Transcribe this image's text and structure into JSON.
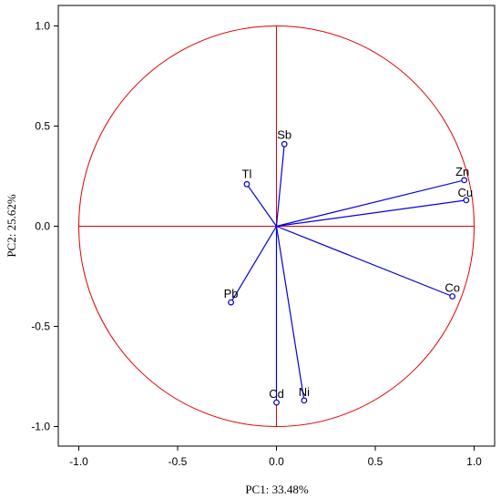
{
  "chart_data": {
    "type": "scatter",
    "subtype": "pca-loading-plot",
    "title": "",
    "xlabel": "PC1: 33.48%",
    "ylabel": "PC2: 25.62%",
    "xlim": [
      -1.1,
      1.1
    ],
    "ylim": [
      -1.1,
      1.1
    ],
    "xticks": [
      "-1.0",
      "-0.5",
      "0.0",
      "0.5",
      "1.0"
    ],
    "yticks": [
      "1.0",
      "0.5",
      "0.0",
      "-0.5",
      "-1.0"
    ],
    "grid": false,
    "unit_circle_radius": 1.0,
    "colors": {
      "circle": "#e00000",
      "vectors": "#0000e0",
      "points": "#0000c0"
    },
    "points": [
      {
        "label": "Sb",
        "x": 0.04,
        "y": 0.41
      },
      {
        "label": "Tl",
        "x": -0.15,
        "y": 0.21
      },
      {
        "label": "Zn",
        "x": 0.95,
        "y": 0.23
      },
      {
        "label": "Cu",
        "x": 0.96,
        "y": 0.13
      },
      {
        "label": "Co",
        "x": 0.89,
        "y": -0.35
      },
      {
        "label": "Pb",
        "x": -0.23,
        "y": -0.38
      },
      {
        "label": "Cd",
        "x": 0.0,
        "y": -0.88
      },
      {
        "label": "Ni",
        "x": 0.14,
        "y": -0.87
      }
    ]
  }
}
